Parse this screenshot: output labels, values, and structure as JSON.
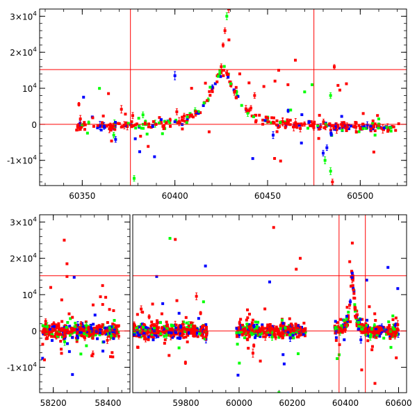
{
  "chart_data": [
    {
      "type": "scatter",
      "name": "top-panel",
      "xlim": [
        60327,
        60525
      ],
      "ylim": [
        -17000,
        32000
      ],
      "xticks": [
        60350,
        60400,
        60450,
        60500
      ],
      "xtick_labels": [
        "60350",
        "60400",
        "60450",
        "60500"
      ],
      "yticks": [
        -10000,
        0,
        10000,
        20000,
        30000
      ],
      "ytick_labels": [
        {
          "pre": "-1×10",
          "exp": "4"
        },
        {
          "pre": "0",
          "exp": ""
        },
        {
          "pre": "10",
          "exp": "4"
        },
        {
          "pre": "2×10",
          "exp": "4"
        },
        {
          "pre": "3×10",
          "exp": "4"
        }
      ],
      "hlines": [
        15200,
        0
      ],
      "vlines": [
        60376,
        60475
      ],
      "line_color": "#ff0000",
      "series_colors": {
        "red": "#ff0000",
        "blue": "#0000ff",
        "green": "#00ff00"
      }
    },
    {
      "type": "scatter",
      "name": "bottom-panel",
      "segments": [
        {
          "xlim": [
            58150,
            58480
          ],
          "xticks": [
            58200,
            58400
          ],
          "xtick_labels": [
            "58200",
            "58400"
          ]
        },
        {
          "xlim": [
            59600,
            60630
          ],
          "xticks": [
            59800,
            60000,
            60200,
            60400,
            60600
          ],
          "xtick_labels": [
            "59800",
            "60000",
            "60200",
            "60400",
            "60600"
          ]
        }
      ],
      "ylim": [
        -17000,
        32000
      ],
      "yticks": [
        -10000,
        0,
        10000,
        20000,
        30000
      ],
      "ytick_labels": [
        {
          "pre": "-1×10",
          "exp": "4"
        },
        {
          "pre": "0",
          "exp": ""
        },
        {
          "pre": "10",
          "exp": "4"
        },
        {
          "pre": "2×10",
          "exp": "4"
        },
        {
          "pre": "3×10",
          "exp": "4"
        }
      ],
      "hlines": [
        15200,
        0
      ],
      "vlines": [
        60376,
        60475
      ],
      "line_color": "#ff0000",
      "series_colors": {
        "red": "#ff0000",
        "blue": "#0000ff",
        "green": "#00ff00"
      }
    }
  ]
}
